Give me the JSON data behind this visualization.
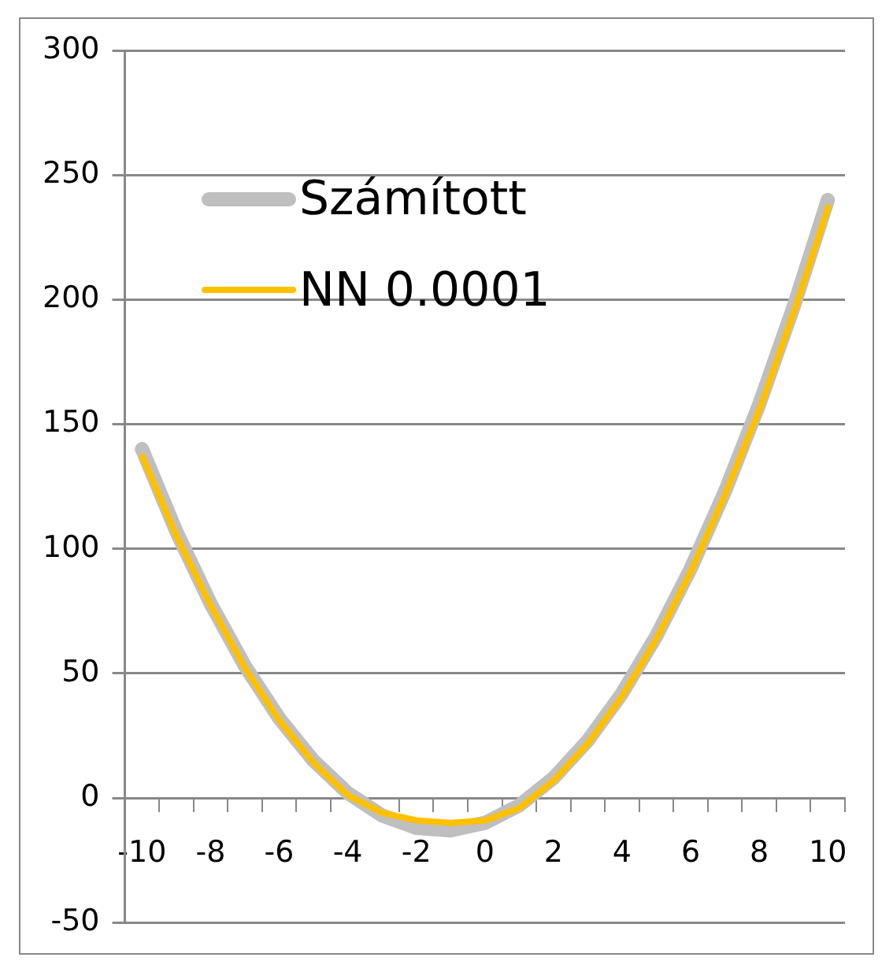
{
  "chart_data": {
    "type": "line",
    "categories": [
      "-10",
      null,
      "-8",
      null,
      "-6",
      null,
      "-4",
      null,
      "-2",
      null,
      "0",
      null,
      "2",
      null,
      "4",
      null,
      "6",
      null,
      "8",
      null,
      "10"
    ],
    "series": [
      {
        "name": "Számított",
        "color": "#bfbfbf",
        "values": [
          140,
          107,
          78,
          53,
          32,
          15,
          2,
          -7,
          -12,
          -13,
          -10,
          -3,
          8,
          23,
          42,
          65,
          92,
          123,
          158,
          197,
          240
        ]
      },
      {
        "name": "NN 0.0001",
        "color": "#ffc000",
        "values": [
          137,
          105,
          77,
          52,
          31,
          14,
          1,
          -6,
          -9,
          -10,
          -9,
          -4,
          7,
          22,
          41,
          64,
          91,
          122,
          156,
          195,
          237
        ]
      }
    ],
    "ylim": [
      -50,
      300
    ],
    "yticks": [
      -50,
      0,
      50,
      100,
      150,
      200,
      250,
      300
    ],
    "grid": "y",
    "legend": "top left",
    "marker": "none",
    "line_style": "solid"
  }
}
